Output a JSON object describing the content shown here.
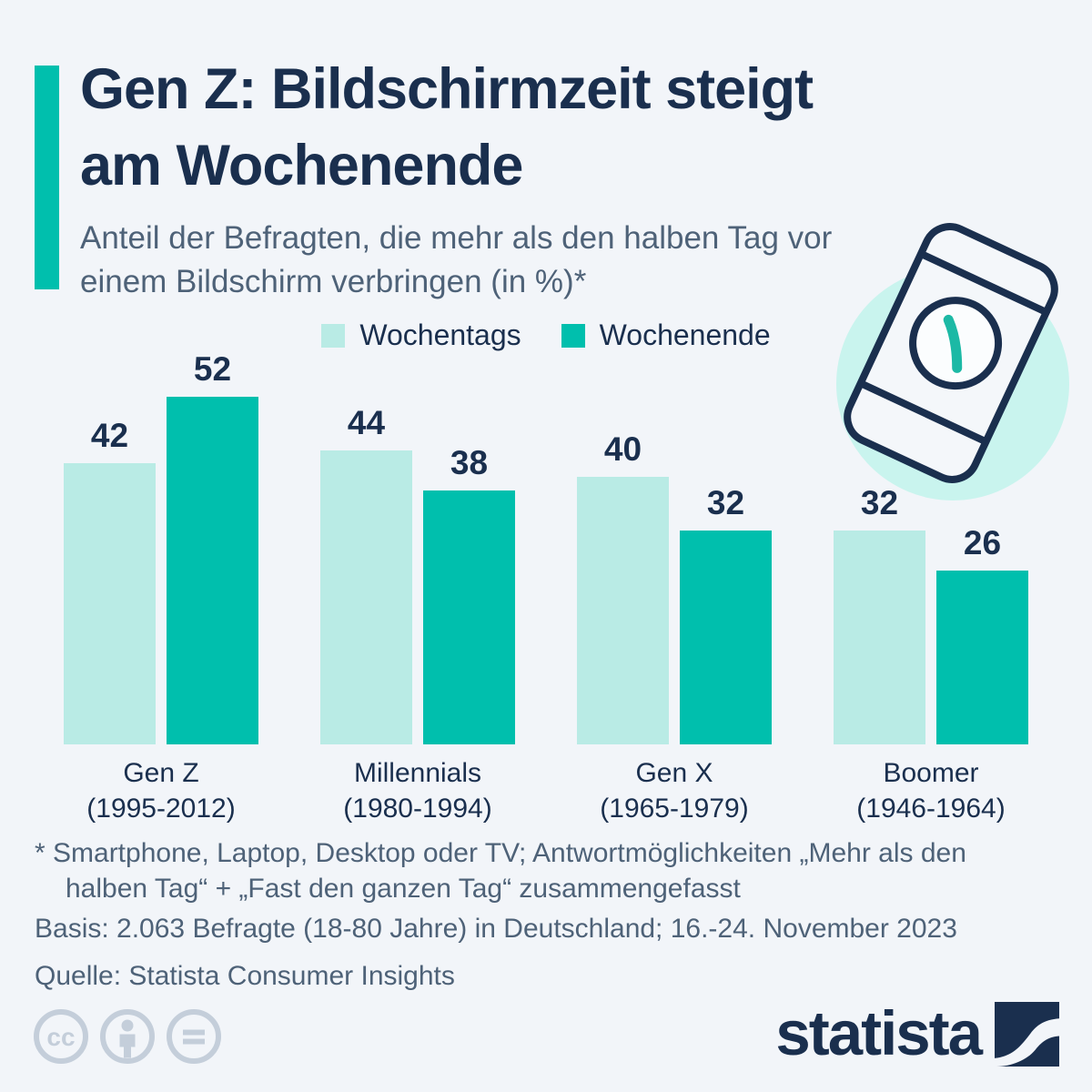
{
  "colors": {
    "background": "#F2F5F9",
    "navy": "#1A2F4E",
    "slate": "#4E6278",
    "teal": "#00BFAD",
    "teal_light": "#B9EBE5",
    "mint_circle": "#C9F4EE",
    "license_grey": "#C4CEDA"
  },
  "header": {
    "title": "Gen Z: Bildschirmzeit steigt am Wochenende",
    "subtitle": "Anteil der Befragten, die mehr als den halben Tag vor einem Bildschirm verbringen (in %)*"
  },
  "chart_data": {
    "type": "bar",
    "title": "Gen Z: Bildschirmzeit steigt am Wochenende",
    "subtitle": "Anteil der Befragten, die mehr als den halben Tag vor einem Bildschirm verbringen (in %)*",
    "unit": "%",
    "categories": [
      {
        "name": "Gen Z",
        "years": "(1995-2012)"
      },
      {
        "name": "Millennials",
        "years": "(1980-1994)"
      },
      {
        "name": "Gen X",
        "years": "(1965-1979)"
      },
      {
        "name": "Boomer",
        "years": "(1946-1964)"
      }
    ],
    "series": [
      {
        "name": "Wochentags",
        "color": "#B9EBE5",
        "values": [
          42,
          44,
          40,
          32
        ]
      },
      {
        "name": "Wochenende",
        "color": "#00BFAD",
        "values": [
          52,
          38,
          32,
          26
        ]
      }
    ],
    "ylim": [
      0,
      52
    ],
    "grid": false,
    "legend_position": "top",
    "value_labels": true
  },
  "footnotes": {
    "asterisk": "* Smartphone, Laptop, Desktop oder TV; Antwortmöglichkeiten „Mehr als den halben Tag“ + „Fast den ganzen Tag“ zusammengefasst",
    "basis": "Basis: 2.063 Befragte (18-80 Jahre) in Deutschland; 16.-24. November 2023",
    "source": "Quelle: Statista Consumer Insights"
  },
  "branding": {
    "logo_text": "statista"
  },
  "illustration": {
    "name": "smartphone-with-clock"
  }
}
